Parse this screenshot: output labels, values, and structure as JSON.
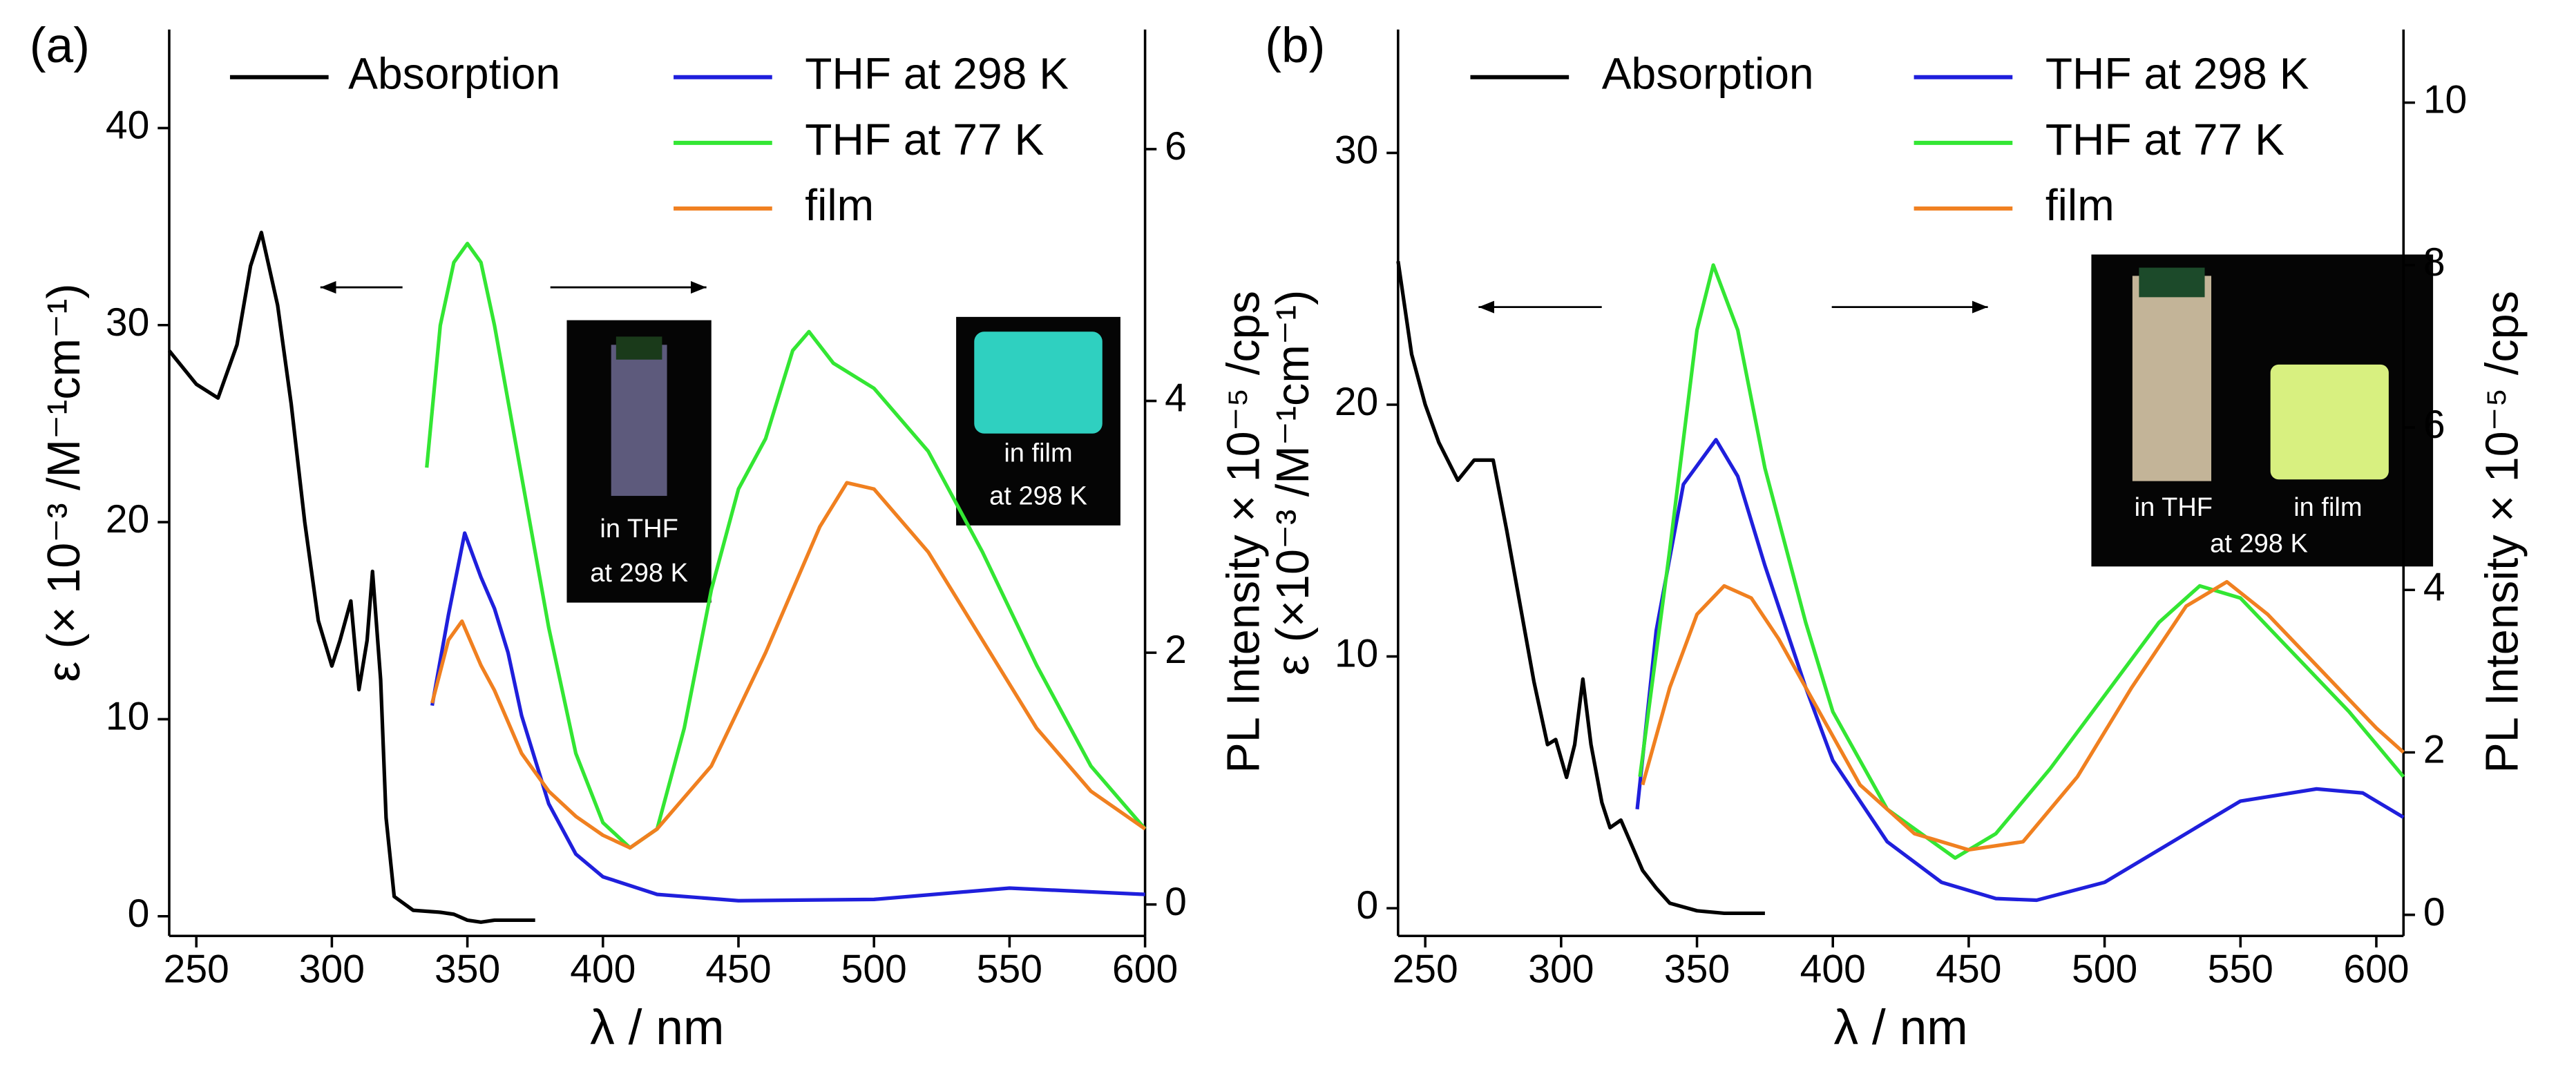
{
  "chart_data": [
    {
      "type": "line",
      "panel_label": "(a)",
      "x_label": "λ / nm",
      "y_label": "ε (× 10⁻³ /M⁻¹cm⁻¹)",
      "y2_label": "PL Intensity × 10⁻⁵ /cps",
      "xlim": [
        240,
        600
      ],
      "ylim": [
        -1,
        45
      ],
      "y2lim": [
        -0.25,
        6.95
      ],
      "xticks": [
        250,
        300,
        350,
        400,
        450,
        500,
        550,
        600
      ],
      "yticks": [
        0,
        10,
        20,
        30,
        40
      ],
      "y2ticks": [
        0,
        2,
        4,
        6
      ],
      "annotations": [
        "in THF",
        "at 298 K",
        "in film",
        "at 298 K"
      ],
      "series": [
        {
          "name": "Absorption",
          "color": "#000000",
          "x": [
            240,
            250,
            258,
            265,
            270,
            274,
            280,
            285,
            290,
            295,
            300,
            303,
            307,
            310,
            313,
            315,
            318,
            320,
            323,
            330,
            340,
            345,
            350,
            355,
            360,
            375
          ],
          "values": [
            28.7,
            27,
            26.3,
            29,
            33,
            34.7,
            31,
            26,
            20,
            15,
            12.7,
            14,
            16,
            11.5,
            14,
            17.5,
            12,
            5,
            1,
            0.3,
            0.2,
            0.1,
            -0.2,
            -0.3,
            -0.2,
            -0.2
          ]
        },
        {
          "name": "THF at 298 K",
          "color": "#1f1fdc",
          "axis": "y2",
          "x": [
            337,
            343,
            349,
            355,
            360,
            365,
            370,
            380,
            390,
            400,
            420,
            450,
            500,
            550,
            600
          ],
          "values": [
            1.58,
            2.3,
            2.95,
            2.6,
            2.35,
            2.0,
            1.5,
            0.8,
            0.4,
            0.22,
            0.08,
            0.03,
            0.04,
            0.13,
            0.08
          ]
        },
        {
          "name": "THF at 77 K",
          "color": "#33e633",
          "axis": "y2",
          "x": [
            335,
            340,
            345,
            350,
            355,
            360,
            370,
            380,
            390,
            400,
            410,
            420,
            430,
            440,
            450,
            460,
            470,
            476,
            485,
            500,
            520,
            540,
            560,
            580,
            600
          ],
          "values": [
            3.47,
            4.6,
            5.1,
            5.25,
            5.1,
            4.6,
            3.4,
            2.2,
            1.2,
            0.65,
            0.45,
            0.6,
            1.4,
            2.5,
            3.3,
            3.7,
            4.4,
            4.55,
            4.3,
            4.1,
            3.6,
            2.8,
            1.9,
            1.1,
            0.6
          ]
        },
        {
          "name": "film",
          "color": "#f08020",
          "axis": "y2",
          "x": [
            337,
            343,
            348,
            355,
            360,
            370,
            380,
            390,
            400,
            410,
            420,
            440,
            460,
            480,
            490,
            500,
            520,
            540,
            560,
            580,
            600
          ],
          "values": [
            1.6,
            2.1,
            2.25,
            1.9,
            1.7,
            1.2,
            0.9,
            0.7,
            0.55,
            0.45,
            0.6,
            1.1,
            2.0,
            3.0,
            3.35,
            3.3,
            2.8,
            2.1,
            1.4,
            0.9,
            0.6
          ]
        }
      ]
    },
    {
      "type": "line",
      "panel_label": "(b)",
      "x_label": "λ / nm",
      "y_label": "ε (×10⁻³ /M⁻¹cm⁻¹)",
      "y2_label": "PL Intensity × 10⁻⁵ /cps",
      "xlim": [
        240,
        610
      ],
      "ylim": [
        -1.1,
        34.9
      ],
      "y2lim": [
        -0.26,
        10.9
      ],
      "xticks": [
        250,
        300,
        350,
        400,
        450,
        500,
        550,
        600
      ],
      "yticks": [
        0,
        10,
        20,
        30
      ],
      "y2ticks": [
        0,
        2,
        4,
        6,
        8,
        10
      ],
      "annotations": [
        "in THF",
        "in film",
        "at 298 K"
      ],
      "series": [
        {
          "name": "Absorption",
          "color": "#000000",
          "x": [
            240,
            245,
            250,
            255,
            262,
            268,
            275,
            280,
            285,
            290,
            295,
            298,
            302,
            305,
            308,
            311,
            315,
            318,
            322,
            326,
            330,
            335,
            340,
            350,
            360,
            375
          ],
          "values": [
            25.7,
            22,
            20,
            18.5,
            17,
            17.8,
            17.8,
            15,
            12,
            9,
            6.5,
            6.7,
            5.2,
            6.5,
            9.1,
            6.5,
            4.2,
            3.2,
            3.5,
            2.5,
            1.5,
            0.8,
            0.2,
            -0.1,
            -0.2,
            -0.2
          ]
        },
        {
          "name": "THF at 298 K",
          "color": "#1f1fdc",
          "axis": "y2",
          "x": [
            328,
            335,
            345,
            357,
            365,
            375,
            390,
            400,
            420,
            440,
            460,
            475,
            500,
            525,
            550,
            578,
            595,
            610
          ],
          "values": [
            1.3,
            3.5,
            5.3,
            5.85,
            5.4,
            4.3,
            2.8,
            1.9,
            0.9,
            0.4,
            0.2,
            0.18,
            0.4,
            0.9,
            1.4,
            1.55,
            1.5,
            1.2
          ]
        },
        {
          "name": "THF at 77 K",
          "color": "#33e633",
          "axis": "y2",
          "x": [
            329,
            340,
            350,
            356,
            365,
            375,
            390,
            400,
            420,
            445,
            460,
            480,
            500,
            520,
            535,
            550,
            570,
            590,
            610
          ],
          "values": [
            1.7,
            4.5,
            7.2,
            8.0,
            7.2,
            5.5,
            3.6,
            2.5,
            1.3,
            0.7,
            1.0,
            1.8,
            2.7,
            3.6,
            4.05,
            3.9,
            3.2,
            2.5,
            1.7
          ]
        },
        {
          "name": "film",
          "color": "#f08020",
          "axis": "y2",
          "x": [
            330,
            340,
            350,
            360,
            370,
            380,
            395,
            410,
            430,
            450,
            470,
            490,
            510,
            530,
            545,
            560,
            580,
            600,
            610
          ],
          "values": [
            1.6,
            2.8,
            3.7,
            4.05,
            3.9,
            3.4,
            2.5,
            1.6,
            1.0,
            0.8,
            0.9,
            1.7,
            2.8,
            3.8,
            4.1,
            3.7,
            3.0,
            2.3,
            2.0
          ]
        }
      ]
    }
  ]
}
